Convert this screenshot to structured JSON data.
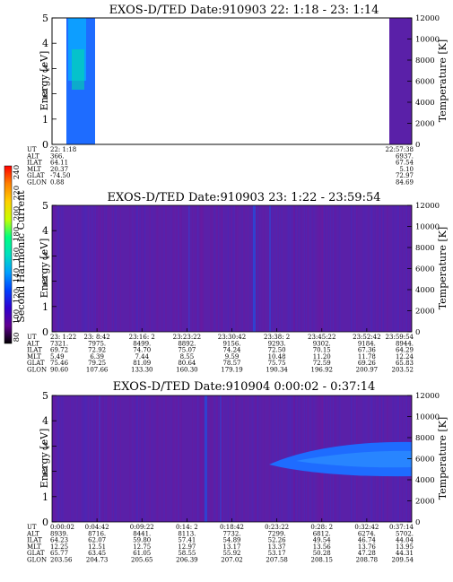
{
  "colors": {
    "background": "#ffffff",
    "plasma_bg": "#5a20a8",
    "enhanced": "#1e6cff",
    "hot": "#00c8ff"
  },
  "colorbar": {
    "label": "Second Harmonic Current",
    "ticks": [
      "240",
      "220",
      "200",
      "180",
      "160",
      "140",
      "120",
      "100",
      "80"
    ],
    "colors": [
      "#ff0000",
      "#ff8000",
      "#ffd000",
      "#c8ff00",
      "#00ff80",
      "#00e0c0",
      "#00a0ff",
      "#0040ff",
      "#3000d0",
      "#600090",
      "#000000"
    ]
  },
  "panels": [
    {
      "title": "EXOS-D/TED   Date:910903  22: 1:18 - 23: 1:14",
      "ylabel": "Energy [eV]",
      "y2label": "Temperature [K]",
      "ytick_labels": [
        "0",
        "1",
        "2",
        "3",
        "4",
        "5"
      ],
      "y2tick_labels": [
        "0",
        "2000",
        "4000",
        "6000",
        "8000",
        "10000",
        "12000"
      ],
      "eph_labels": [
        "UT",
        "ALT",
        "ILAT",
        "MLT",
        "GLAT",
        "GLON"
      ],
      "columns": [
        {
          "values": [
            "22: 1:18",
            "366.",
            "64.11",
            "20.37",
            "-74.50",
            "0.88"
          ]
        },
        {
          "values": [
            "22:57:38",
            "6937.",
            "67.54",
            "5.10",
            "72.97",
            "84.69"
          ]
        }
      ]
    },
    {
      "title": "EXOS-D/TED   Date:910903  23: 1:22 - 23:59:54",
      "ylabel": "Energy [eV]",
      "y2label": "Temperature [K]",
      "ytick_labels": [
        "0",
        "1",
        "2",
        "3",
        "4",
        "5"
      ],
      "y2tick_labels": [
        "0",
        "2000",
        "4000",
        "6000",
        "8000",
        "10000",
        "12000"
      ],
      "eph_labels": [
        "UT",
        "ALT",
        "ILAT",
        "MLT",
        "GLAT",
        "GLON"
      ],
      "columns": [
        {
          "values": [
            "23: 1:22",
            "7321.",
            "69.72",
            "5.49",
            "75.46",
            "90.60"
          ]
        },
        {
          "values": [
            "23: 8:42",
            "7975.",
            "72.92",
            "6.39",
            "79.25",
            "107.66"
          ]
        },
        {
          "values": [
            "23:16: 2",
            "8499.",
            "74.70",
            "7.44",
            "81.09",
            "133.30"
          ]
        },
        {
          "values": [
            "23:23:22",
            "8892.",
            "75.07",
            "8.55",
            "80.64",
            "160.30"
          ]
        },
        {
          "values": [
            "23:30:42",
            "9156.",
            "74.24",
            "9.59",
            "78.57",
            "179.19"
          ]
        },
        {
          "values": [
            "23:38: 2",
            "9293.",
            "72.50",
            "10.48",
            "75.75",
            "190.34"
          ]
        },
        {
          "values": [
            "23:45:22",
            "9302.",
            "70.15",
            "11.20",
            "72.59",
            "196.92"
          ]
        },
        {
          "values": [
            "23:52:42",
            "9184.",
            "67.36",
            "11.78",
            "69.26",
            "200.97"
          ]
        },
        {
          "values": [
            "23:59:54",
            "8944.",
            "64.29",
            "12.24",
            "65.83",
            "203.52"
          ]
        }
      ]
    },
    {
      "title": "EXOS-D/TED   Date:910904   0:00:02 - 0:37:14",
      "ylabel": "Energy [eV]",
      "y2label": "Temperature [K]",
      "ytick_labels": [
        "0",
        "1",
        "2",
        "3",
        "4",
        "5"
      ],
      "y2tick_labels": [
        "0",
        "2000",
        "4000",
        "6000",
        "8000",
        "10000",
        "12000"
      ],
      "eph_labels": [
        "UT",
        "ALT",
        "ILAT",
        "MLT",
        "GLAT",
        "GLON"
      ],
      "columns": [
        {
          "values": [
            "0:00:02",
            "8939.",
            "64.23",
            "12.25",
            "65.77",
            "203.56"
          ]
        },
        {
          "values": [
            "0:04:42",
            "8716.",
            "62.07",
            "12.51",
            "63.45",
            "204.73"
          ]
        },
        {
          "values": [
            "0:09:22",
            "8441.",
            "59.80",
            "12.75",
            "61.05",
            "205.65"
          ]
        },
        {
          "values": [
            "0:14: 2",
            "8113.",
            "57.41",
            "12.97",
            "58.55",
            "206.39"
          ]
        },
        {
          "values": [
            "0:18:42",
            "7732.",
            "54.89",
            "13.17",
            "55.92",
            "207.02"
          ]
        },
        {
          "values": [
            "0:23:22",
            "7299.",
            "52.26",
            "13.37",
            "53.17",
            "207.58"
          ]
        },
        {
          "values": [
            "0:28: 2",
            "6812.",
            "49.54",
            "13.56",
            "50.28",
            "208.15"
          ]
        },
        {
          "values": [
            "0:32:42",
            "6274.",
            "46.74",
            "13.76",
            "47.28",
            "208.78"
          ]
        },
        {
          "values": [
            "0:37:14",
            "5702.",
            "44.04",
            "13.95",
            "44.31",
            "209.54"
          ]
        }
      ]
    }
  ],
  "chart_data": [
    {
      "type": "heatmap",
      "title": "EXOS-D/TED   Date:910903  22: 1:18 - 23: 1:14",
      "xlabel": "UT",
      "ylabel": "Energy [eV]",
      "y2label": "Temperature [K]",
      "ylim": [
        0,
        5
      ],
      "y2lim": [
        0,
        12000
      ],
      "x": [
        "22: 1:18",
        "22:57:38"
      ],
      "colorbar_label": "Second Harmonic Current",
      "colorbar_range": [
        80,
        240
      ]
    },
    {
      "type": "heatmap",
      "title": "EXOS-D/TED   Date:910903  23: 1:22 - 23:59:54",
      "xlabel": "UT",
      "ylabel": "Energy [eV]",
      "y2label": "Temperature [K]",
      "ylim": [
        0,
        5
      ],
      "y2lim": [
        0,
        12000
      ],
      "x": [
        "23: 1:22",
        "23: 8:42",
        "23:16: 2",
        "23:23:22",
        "23:30:42",
        "23:38: 2",
        "23:45:22",
        "23:52:42",
        "23:59:54"
      ],
      "colorbar_label": "Second Harmonic Current",
      "colorbar_range": [
        80,
        240
      ]
    },
    {
      "type": "heatmap",
      "title": "EXOS-D/TED   Date:910904   0:00:02 - 0:37:14",
      "xlabel": "UT",
      "ylabel": "Energy [eV]",
      "y2label": "Temperature [K]",
      "ylim": [
        0,
        5
      ],
      "y2lim": [
        0,
        12000
      ],
      "x": [
        "0:00:02",
        "0:04:42",
        "0:09:22",
        "0:14: 2",
        "0:18:42",
        "0:23:22",
        "0:28: 2",
        "0:32:42",
        "0:37:14"
      ],
      "colorbar_label": "Second Harmonic Current",
      "colorbar_range": [
        80,
        240
      ]
    }
  ]
}
